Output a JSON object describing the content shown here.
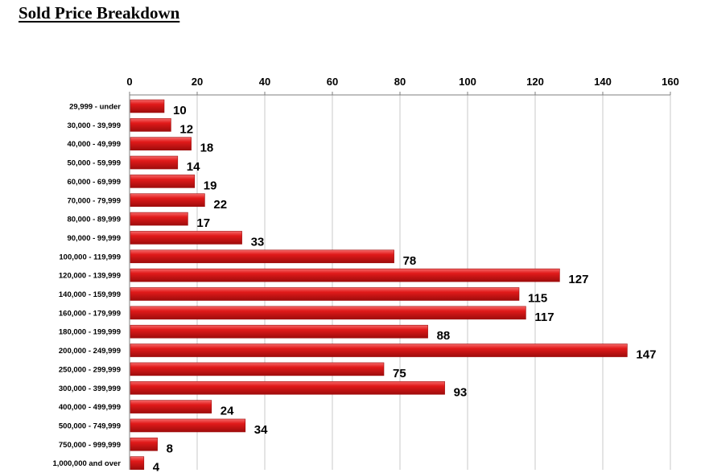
{
  "page": {
    "title": "Sold Price Breakdown"
  },
  "colors": {
    "bar": "#e11a1a",
    "bar_dark": "#9e0c0c",
    "bar_light": "#f56a6a",
    "grid": "#c8c8c8",
    "axis": "#7f7f7f"
  },
  "chart_data": {
    "type": "bar",
    "orientation": "horizontal",
    "categories": [
      "29,999 - under",
      "30,000 - 39,999",
      "40,000 - 49,999",
      "50,000 - 59,999",
      "60,000 - 69,999",
      "70,000 - 79,999",
      "80,000 - 89,999",
      "90,000 - 99,999",
      "100,000 - 119,999",
      "120,000 - 139,999",
      "140,000 - 159,999",
      "160,000 - 179,999",
      "180,000 - 199,999",
      "200,000 - 249,999",
      "250,000 - 299,999",
      "300,000 - 399,999",
      "400,000 - 499,999",
      "500,000 - 749,999",
      "750,000 - 999,999",
      "1,000,000 and over"
    ],
    "values": [
      10,
      12,
      18,
      14,
      19,
      22,
      17,
      33,
      78,
      127,
      115,
      117,
      88,
      147,
      75,
      93,
      24,
      34,
      8,
      4
    ],
    "xlim": [
      0,
      160
    ],
    "xticks": [
      "0",
      "20",
      "40",
      "60",
      "80",
      "100",
      "120",
      "140",
      "160"
    ],
    "x_axis_position": "top",
    "grid": true,
    "legend": "none",
    "data_labels": true
  }
}
